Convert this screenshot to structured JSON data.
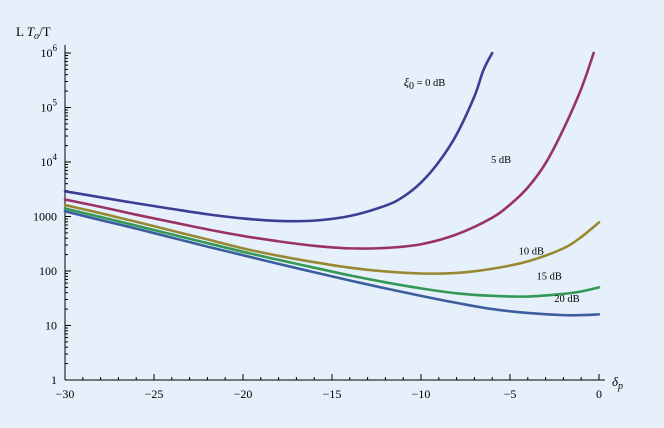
{
  "chart_data": {
    "type": "line",
    "background": "#e6f0fa",
    "ylabel": "L Tₒ/T",
    "ylabel_parts": {
      "prefix": "L ",
      "italic": "T",
      "subscript": "o",
      "suffix": "/T"
    },
    "xlabel": "δp",
    "xlabel_parts": {
      "italic": "δ",
      "subscript": "p"
    },
    "xlim": [
      -30,
      0
    ],
    "ylim": [
      1,
      1000000
    ],
    "yscale": "log",
    "grid": false,
    "legend": "none",
    "xticks": [
      -30,
      -25,
      -20,
      -15,
      -10,
      -5,
      0
    ],
    "xtick_labels": [
      "−30",
      "−25",
      "−20",
      "−15",
      "−10",
      "−5",
      "0"
    ],
    "yticks": [
      1,
      10,
      100,
      1000,
      10000,
      100000,
      1000000
    ],
    "ytick_labels": [
      {
        "text": "1",
        "base": "1",
        "exp": ""
      },
      {
        "text": "10",
        "base": "10",
        "exp": ""
      },
      {
        "text": "100",
        "base": "100",
        "exp": ""
      },
      {
        "text": "1000",
        "base": "1000",
        "exp": ""
      },
      {
        "text": "10^4",
        "base": "10",
        "exp": "4"
      },
      {
        "text": "10^5",
        "base": "10",
        "exp": "5"
      },
      {
        "text": "10^6",
        "base": "10",
        "exp": "6"
      }
    ],
    "series": [
      {
        "name": "ξ0 = 0 dB",
        "label_parts": {
          "italic": "ξ",
          "subscript": "0",
          "suffix": " = 0 dB"
        },
        "color": "#3d3d96",
        "label_at": {
          "x": -9.8,
          "y": 250000
        },
        "x": [
          -30,
          -28,
          -26,
          -24,
          -22,
          -20,
          -18,
          -16,
          -14,
          -12,
          -11,
          -10,
          -9,
          -8,
          -7,
          -6.5,
          -6
        ],
        "y": [
          2900,
          2250,
          1750,
          1380,
          1100,
          920,
          830,
          840,
          1020,
          1580,
          2300,
          4200,
          10000,
          32000,
          160000,
          480000,
          1000000
        ]
      },
      {
        "name": "5 dB",
        "label_parts": {
          "italic": "",
          "subscript": "",
          "suffix": "5 dB"
        },
        "color": "#993366",
        "label_at": {
          "x": -5.5,
          "y": 9500
        },
        "x": [
          -30,
          -28,
          -26,
          -24,
          -22,
          -20,
          -18,
          -16,
          -14,
          -12,
          -10,
          -8,
          -6,
          -5,
          -4,
          -3,
          -2,
          -1,
          -0.3
        ],
        "y": [
          2050,
          1500,
          1080,
          790,
          580,
          440,
          350,
          290,
          260,
          265,
          310,
          470,
          950,
          1650,
          3400,
          9500,
          40000,
          220000,
          1000000
        ]
      },
      {
        "name": "10 dB",
        "label_parts": {
          "italic": "",
          "subscript": "",
          "suffix": "10 dB"
        },
        "color": "#998833",
        "label_at": {
          "x": -3.8,
          "y": 200
        },
        "x": [
          -30,
          -28,
          -26,
          -24,
          -22,
          -20,
          -18,
          -16,
          -14,
          -12,
          -10,
          -8,
          -6,
          -4,
          -2,
          -1,
          0
        ],
        "y": [
          1620,
          1150,
          800,
          550,
          380,
          260,
          190,
          145,
          115,
          98,
          90,
          92,
          110,
          150,
          260,
          420,
          780
        ]
      },
      {
        "name": "15 dB",
        "label_parts": {
          "italic": "",
          "subscript": "",
          "suffix": "15 dB"
        },
        "color": "#339955",
        "label_at": {
          "x": -2.8,
          "y": 70
        },
        "x": [
          -30,
          -28,
          -26,
          -24,
          -22,
          -20,
          -18,
          -16,
          -14,
          -12,
          -10,
          -8,
          -6,
          -4,
          -2,
          -1,
          0
        ],
        "y": [
          1400,
          980,
          680,
          470,
          325,
          225,
          160,
          115,
          83,
          62,
          48,
          39,
          35,
          34,
          38,
          42,
          50
        ]
      },
      {
        "name": "20 dB",
        "label_parts": {
          "italic": "",
          "subscript": "",
          "suffix": "20 dB"
        },
        "color": "#3d5e9e",
        "label_at": {
          "x": -1.8,
          "y": 27
        },
        "x": [
          -30,
          -28,
          -26,
          -24,
          -22,
          -20,
          -18,
          -16,
          -14,
          -12,
          -10,
          -8,
          -6,
          -4,
          -2,
          -1,
          0
        ],
        "y": [
          1250,
          860,
          600,
          410,
          280,
          195,
          135,
          95,
          67,
          48,
          35,
          26,
          20,
          17,
          15.5,
          15.5,
          16
        ]
      }
    ]
  }
}
